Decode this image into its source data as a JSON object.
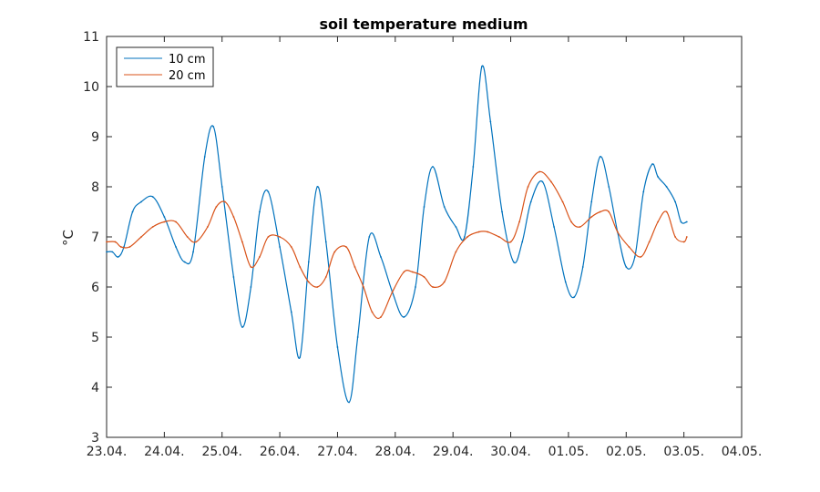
{
  "chart_data": {
    "type": "line",
    "title": "soil temperature medium",
    "xlabel": "",
    "ylabel": "°C",
    "xlim": [
      0,
      11
    ],
    "ylim": [
      3,
      11
    ],
    "x_tick_labels": [
      "23.04.",
      "24.04.",
      "25.04.",
      "26.04.",
      "27.04.",
      "28.04.",
      "29.04.",
      "30.04.",
      "01.05.",
      "02.05.",
      "03.05.",
      "04.05."
    ],
    "x_ticks": [
      0,
      1,
      2,
      3,
      4,
      5,
      6,
      7,
      8,
      9,
      10,
      11
    ],
    "y_ticks": [
      3,
      4,
      5,
      6,
      7,
      8,
      9,
      10,
      11
    ],
    "x_unit": "days after 23.04.",
    "grid": false,
    "legend_position": "top-left",
    "series": [
      {
        "name": "10 cm",
        "color": "#0072bd",
        "x": [
          0,
          0.1,
          0.2,
          0.3,
          0.45,
          0.6,
          0.8,
          1.0,
          1.2,
          1.35,
          1.5,
          1.7,
          1.85,
          2.0,
          2.2,
          2.35,
          2.5,
          2.65,
          2.8,
          3.0,
          3.2,
          3.35,
          3.5,
          3.65,
          3.8,
          4.0,
          4.2,
          4.35,
          4.55,
          4.75,
          4.95,
          5.15,
          5.35,
          5.5,
          5.65,
          5.85,
          6.05,
          6.2,
          6.35,
          6.5,
          6.65,
          6.85,
          7.05,
          7.2,
          7.35,
          7.55,
          7.75,
          7.95,
          8.1,
          8.25,
          8.4,
          8.55,
          8.7,
          8.85,
          9.0,
          9.15,
          9.3,
          9.45,
          9.55,
          9.7,
          9.85,
          9.95,
          10.05
        ],
        "values": [
          6.7,
          6.7,
          6.6,
          6.8,
          7.5,
          7.7,
          7.8,
          7.4,
          6.8,
          6.5,
          6.7,
          8.6,
          9.2,
          8.0,
          6.2,
          5.2,
          6.0,
          7.5,
          7.9,
          6.8,
          5.5,
          4.6,
          6.5,
          8.0,
          6.9,
          4.8,
          3.7,
          5.0,
          7.0,
          6.6,
          5.9,
          5.4,
          6.0,
          7.6,
          8.4,
          7.6,
          7.2,
          7.0,
          8.4,
          10.4,
          9.3,
          7.5,
          6.5,
          6.9,
          7.7,
          8.1,
          7.2,
          6.1,
          5.8,
          6.4,
          7.7,
          8.6,
          8.0,
          7.1,
          6.4,
          6.6,
          7.9,
          8.45,
          8.2,
          8.0,
          7.7,
          7.3,
          7.3
        ]
      },
      {
        "name": "20 cm",
        "color": "#d95319",
        "x": [
          0,
          0.15,
          0.25,
          0.4,
          0.6,
          0.8,
          1.0,
          1.2,
          1.4,
          1.55,
          1.75,
          1.9,
          2.05,
          2.2,
          2.35,
          2.5,
          2.65,
          2.8,
          3.0,
          3.2,
          3.35,
          3.5,
          3.65,
          3.8,
          3.95,
          4.15,
          4.3,
          4.45,
          4.6,
          4.75,
          4.95,
          5.15,
          5.3,
          5.5,
          5.65,
          5.85,
          6.05,
          6.25,
          6.45,
          6.6,
          6.8,
          7.0,
          7.15,
          7.3,
          7.5,
          7.7,
          7.9,
          8.05,
          8.2,
          8.4,
          8.55,
          8.7,
          8.85,
          9.05,
          9.25,
          9.4,
          9.55,
          9.7,
          9.85,
          10.0,
          10.05
        ],
        "values": [
          6.9,
          6.9,
          6.8,
          6.8,
          7.0,
          7.2,
          7.3,
          7.3,
          7.0,
          6.9,
          7.2,
          7.6,
          7.7,
          7.4,
          6.9,
          6.4,
          6.6,
          7.0,
          7.0,
          6.8,
          6.4,
          6.1,
          6.0,
          6.2,
          6.7,
          6.8,
          6.4,
          6.0,
          5.5,
          5.4,
          5.9,
          6.3,
          6.3,
          6.2,
          6.0,
          6.1,
          6.7,
          7.0,
          7.1,
          7.1,
          7.0,
          6.9,
          7.3,
          8.0,
          8.3,
          8.1,
          7.7,
          7.3,
          7.2,
          7.4,
          7.5,
          7.5,
          7.1,
          6.8,
          6.6,
          6.9,
          7.3,
          7.5,
          7.0,
          6.9,
          7.0
        ]
      }
    ]
  }
}
